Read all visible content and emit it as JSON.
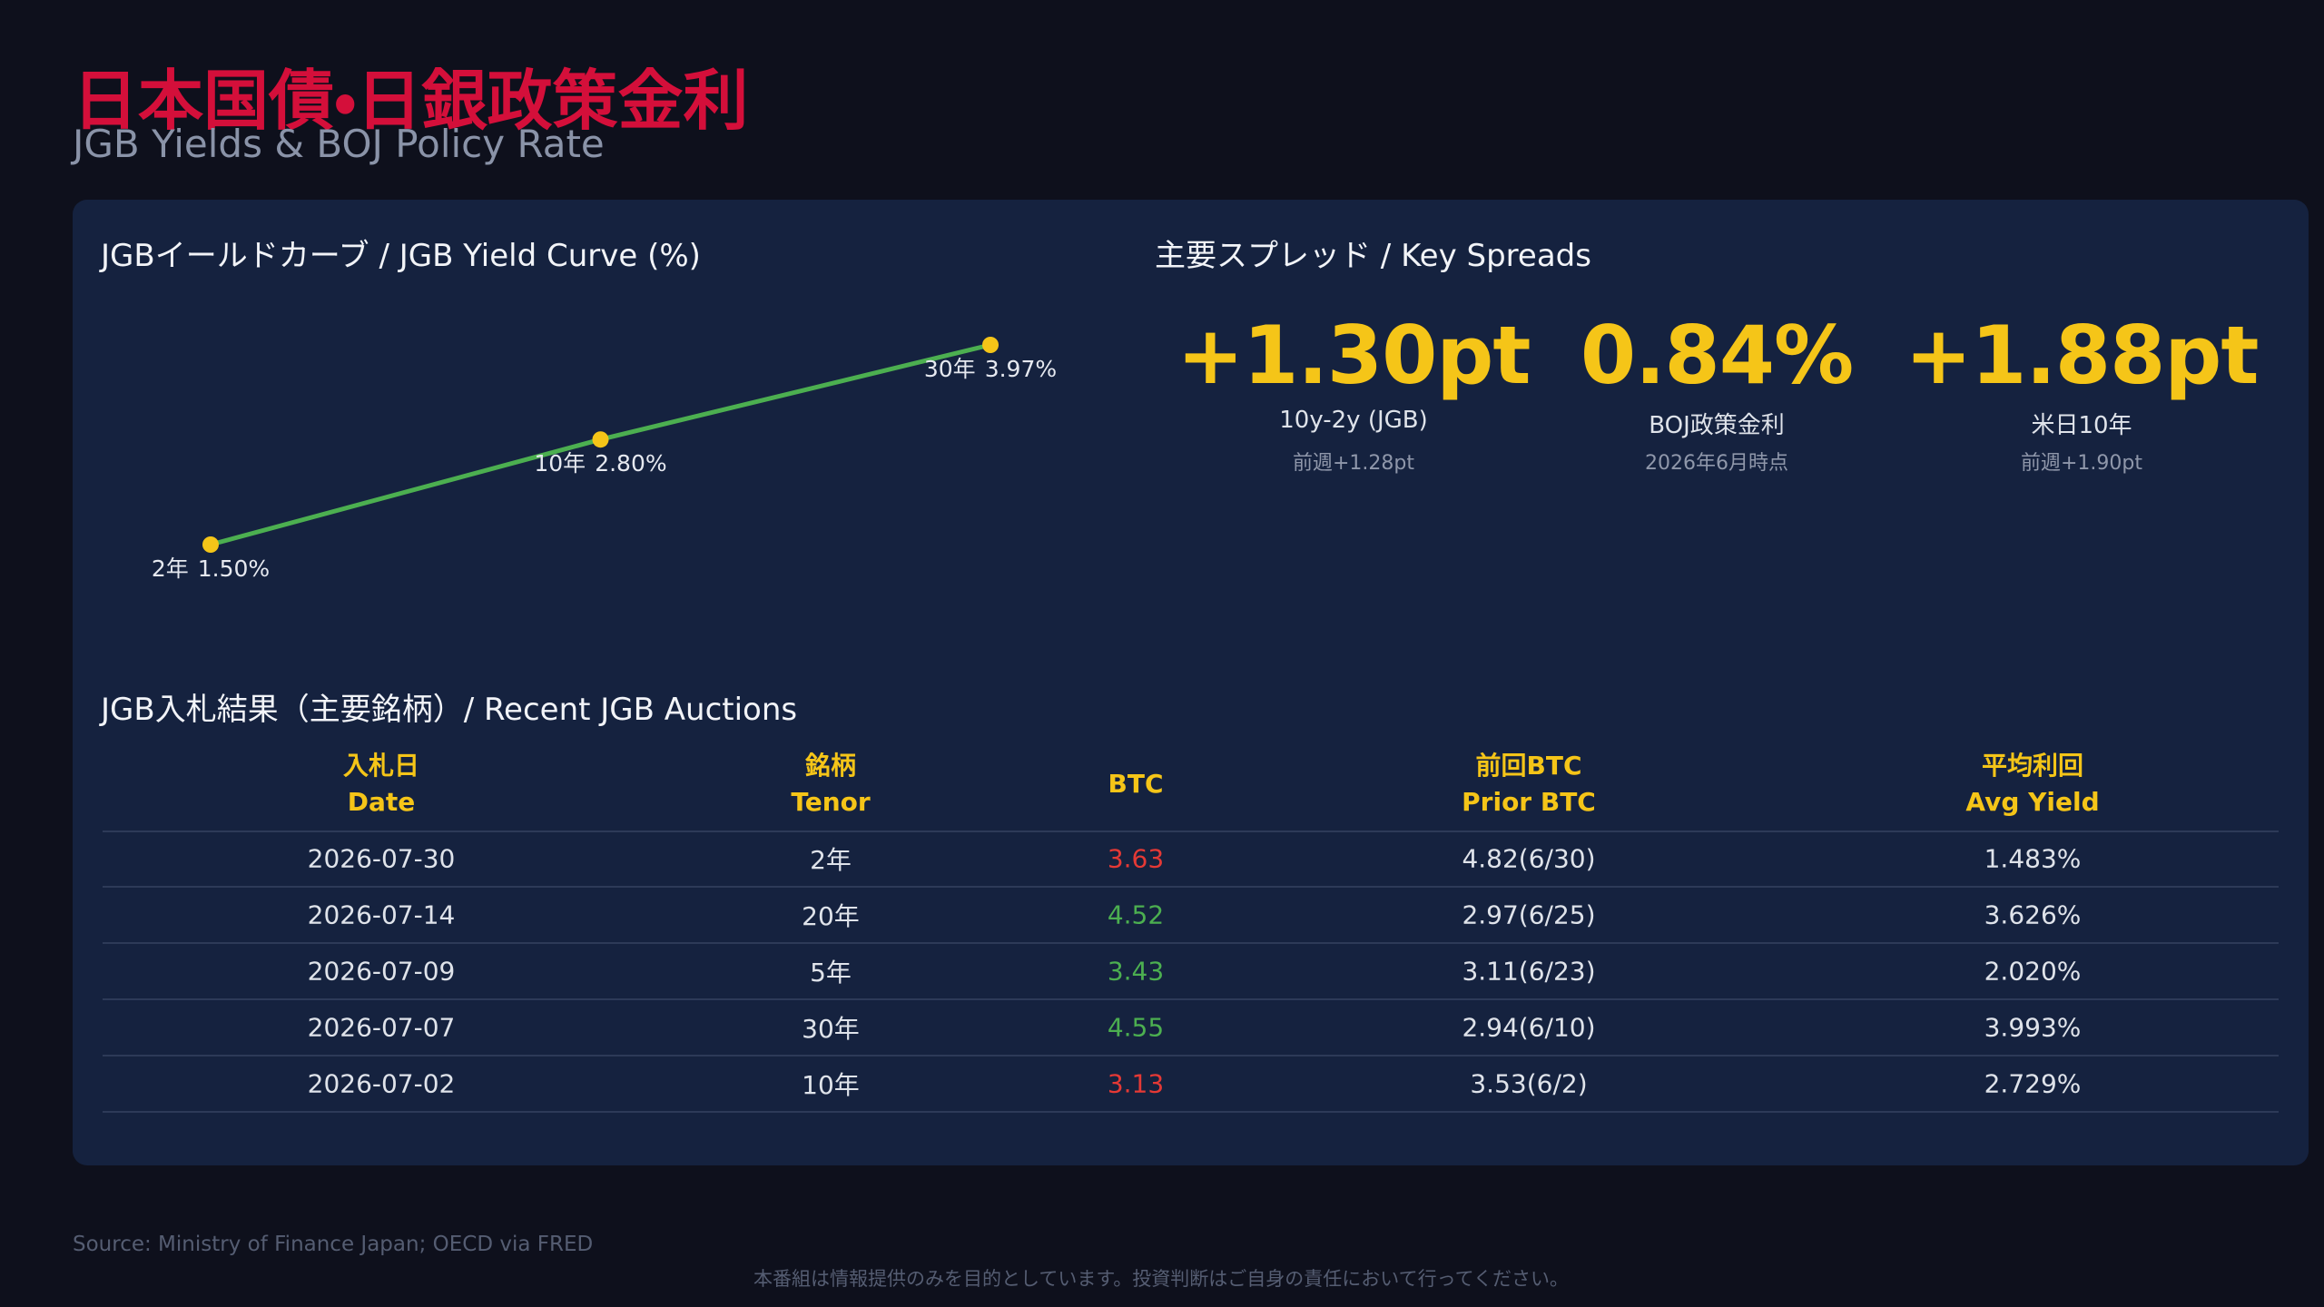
{
  "header": {
    "title": "日本国債・日銀政策金利",
    "subtitle": "JGB Yields & BOJ Policy Rate"
  },
  "chart_data": {
    "type": "line",
    "title": "JGBイールドカーブ / JGB Yield Curve (%)",
    "categories": [
      "2年",
      "10年",
      "30年"
    ],
    "values": [
      1.5,
      2.8,
      3.97
    ],
    "value_labels": [
      "1.50%",
      "2.80%",
      "3.97%"
    ],
    "color": "#4caf50",
    "point_color": "#f5c518"
  },
  "spreads": {
    "title": "主要スプレッド / Key Spreads",
    "items": [
      {
        "value": "+1.30pt",
        "label": "10y-2y (JGB)",
        "note": "前週+1.28pt"
      },
      {
        "value": "0.84%",
        "label": "BOJ政策金利",
        "note": "2026年6月時点"
      },
      {
        "value": "+1.88pt",
        "label": "米日10年",
        "note": "前週+1.90pt"
      }
    ]
  },
  "table": {
    "title": "JGB入札結果（主要銘柄）/ Recent JGB Auctions",
    "headers": [
      [
        "入札日",
        "Date"
      ],
      [
        "銘柄",
        "Tenor"
      ],
      [
        "BTC"
      ],
      [
        "前回BTC",
        "Prior BTC"
      ],
      [
        "平均利回",
        "Avg Yield"
      ]
    ],
    "rows": [
      [
        "2026-07-30",
        "2年",
        "3.63",
        "4.82(6/30)",
        "1.483%"
      ],
      [
        "2026-07-14",
        "20年",
        "4.52",
        "2.97(6/25)",
        "3.626%"
      ],
      [
        "2026-07-09",
        "5年",
        "3.43",
        "3.11(6/23)",
        "2.020%"
      ],
      [
        "2026-07-07",
        "30年",
        "4.55",
        "2.94(6/10)",
        "3.993%"
      ],
      [
        "2026-07-02",
        "10年",
        "3.13",
        "3.53(6/2)",
        "2.729%"
      ]
    ],
    "btc_colors": [
      "#e53935",
      "#4caf50",
      "#4caf50",
      "#4caf50",
      "#e53935"
    ]
  },
  "footer": {
    "source": "Source: Ministry of Finance Japan; OECD via FRED",
    "disclaimer": "本番組は情報提供のみを目的としています。投資判断はご自身の責任において行ってください。"
  }
}
